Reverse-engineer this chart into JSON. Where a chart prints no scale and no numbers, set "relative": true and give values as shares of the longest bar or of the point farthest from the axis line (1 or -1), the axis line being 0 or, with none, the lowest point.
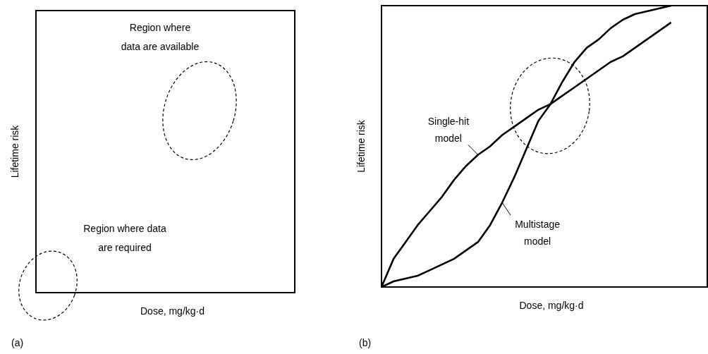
{
  "chart_data": [
    {
      "type": "other",
      "xlabel": "Dose, mg/kg·d",
      "ylabel": "Lifetime risk",
      "annotations": [
        "Region where data are available",
        "Region where data are required",
        "(a)"
      ]
    },
    {
      "type": "line",
      "xlabel": "Dose, mg/kg·d",
      "ylabel": "Lifetime risk",
      "relative": true,
      "marker": "none",
      "annotations": [
        "(b)"
      ],
      "categories": [
        null,
        null,
        null,
        null,
        null,
        null,
        null,
        null,
        null,
        null,
        null,
        null,
        null,
        null,
        null,
        null,
        null,
        null,
        null,
        null,
        null,
        null,
        null,
        null,
        null,
        null,
        null,
        null
      ],
      "series": [
        {
          "name": "Single-hit model",
          "color": "#000000",
          "values": [
            0,
            0.1,
            0.16,
            0.22,
            0.27,
            0.32,
            0.38,
            0.43,
            0.47,
            0.5,
            0.54,
            0.57,
            0.6,
            0.63,
            0.65,
            0.68,
            0.71,
            0.74,
            0.77,
            0.8,
            0.82,
            0.85,
            0.88,
            0.91,
            0.94,
            null,
            null,
            null
          ]
        },
        {
          "name": "Multistage model",
          "color": "#000000",
          "values": [
            0,
            0.02,
            0.03,
            0.04,
            0.06,
            0.08,
            0.1,
            0.13,
            0.16,
            0.22,
            0.3,
            0.39,
            0.49,
            0.59,
            0.65,
            0.73,
            0.8,
            0.85,
            0.88,
            0.92,
            0.95,
            0.97,
            0.98,
            0.99,
            1.0,
            null,
            null,
            null
          ]
        }
      ]
    }
  ]
}
